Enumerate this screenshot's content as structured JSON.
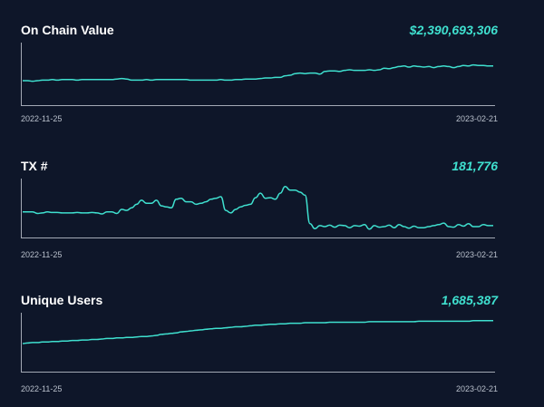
{
  "chart_data": [
    {
      "type": "line",
      "title": "On Chain Value",
      "headline_value": "$2,390,693,306",
      "x_start_label": "2022-11-25",
      "x_end_label": "2023-02-21",
      "line_color": "#3fe0cf",
      "grid": false,
      "values": [
        0.4,
        0.4,
        0.39,
        0.4,
        0.41,
        0.41,
        0.42,
        0.41,
        0.42,
        0.42,
        0.42,
        0.41,
        0.42,
        0.42,
        0.42,
        0.42,
        0.42,
        0.42,
        0.42,
        0.43,
        0.44,
        0.43,
        0.41,
        0.41,
        0.41,
        0.42,
        0.41,
        0.42,
        0.42,
        0.42,
        0.42,
        0.42,
        0.42,
        0.42,
        0.41,
        0.41,
        0.41,
        0.41,
        0.41,
        0.41,
        0.42,
        0.41,
        0.41,
        0.42,
        0.42,
        0.43,
        0.43,
        0.43,
        0.44,
        0.45,
        0.45,
        0.46,
        0.46,
        0.49,
        0.5,
        0.53,
        0.54,
        0.53,
        0.54,
        0.54,
        0.52,
        0.57,
        0.58,
        0.58,
        0.57,
        0.59,
        0.6,
        0.59,
        0.59,
        0.59,
        0.6,
        0.59,
        0.6,
        0.63,
        0.62,
        0.64,
        0.66,
        0.67,
        0.65,
        0.67,
        0.66,
        0.65,
        0.66,
        0.64,
        0.66,
        0.67,
        0.66,
        0.64,
        0.66,
        0.68,
        0.67,
        0.69,
        0.68,
        0.68,
        0.67,
        0.67
      ]
    },
    {
      "type": "line",
      "title": "TX #",
      "headline_value": "181,776",
      "x_start_label": "2022-11-25",
      "x_end_label": "2023-02-21",
      "line_color": "#3fe0cf",
      "grid": false,
      "values": [
        0.45,
        0.45,
        0.45,
        0.42,
        0.43,
        0.45,
        0.44,
        0.44,
        0.43,
        0.43,
        0.43,
        0.44,
        0.43,
        0.43,
        0.44,
        0.43,
        0.41,
        0.45,
        0.45,
        0.42,
        0.5,
        0.48,
        0.53,
        0.6,
        0.68,
        0.62,
        0.62,
        0.68,
        0.57,
        0.55,
        0.53,
        0.7,
        0.72,
        0.65,
        0.65,
        0.6,
        0.62,
        0.65,
        0.7,
        0.72,
        0.75,
        0.48,
        0.43,
        0.5,
        0.55,
        0.58,
        0.6,
        0.73,
        0.82,
        0.72,
        0.73,
        0.7,
        0.82,
        0.95,
        0.88,
        0.88,
        0.84,
        0.78,
        0.22,
        0.12,
        0.18,
        0.16,
        0.19,
        0.15,
        0.19,
        0.18,
        0.14,
        0.18,
        0.17,
        0.2,
        0.11,
        0.18,
        0.15,
        0.16,
        0.19,
        0.14,
        0.2,
        0.16,
        0.13,
        0.17,
        0.14,
        0.14,
        0.16,
        0.18,
        0.2,
        0.23,
        0.16,
        0.15,
        0.2,
        0.17,
        0.22,
        0.16,
        0.16,
        0.2,
        0.18,
        0.18
      ]
    },
    {
      "type": "line",
      "title": "Unique Users",
      "headline_value": "1,685,387",
      "x_start_label": "2022-11-25",
      "x_end_label": "2023-02-21",
      "line_color": "#3fe0cf",
      "grid": false,
      "values": [
        0.5,
        0.51,
        0.52,
        0.52,
        0.53,
        0.53,
        0.54,
        0.54,
        0.55,
        0.55,
        0.56,
        0.56,
        0.57,
        0.57,
        0.58,
        0.58,
        0.59,
        0.6,
        0.6,
        0.61,
        0.61,
        0.62,
        0.62,
        0.63,
        0.64,
        0.64,
        0.65,
        0.66,
        0.68,
        0.69,
        0.7,
        0.71,
        0.73,
        0.74,
        0.75,
        0.76,
        0.77,
        0.78,
        0.79,
        0.8,
        0.8,
        0.81,
        0.82,
        0.83,
        0.83,
        0.84,
        0.85,
        0.86,
        0.86,
        0.87,
        0.88,
        0.88,
        0.89,
        0.89,
        0.9,
        0.9,
        0.9,
        0.91,
        0.91,
        0.91,
        0.91,
        0.91,
        0.92,
        0.92,
        0.92,
        0.92,
        0.92,
        0.92,
        0.92,
        0.92,
        0.93,
        0.93,
        0.93,
        0.93,
        0.93,
        0.93,
        0.93,
        0.93,
        0.93,
        0.93,
        0.94,
        0.94,
        0.94,
        0.94,
        0.94,
        0.94,
        0.94,
        0.94,
        0.94,
        0.94,
        0.94,
        0.95,
        0.95,
        0.95,
        0.95,
        0.95
      ]
    }
  ]
}
